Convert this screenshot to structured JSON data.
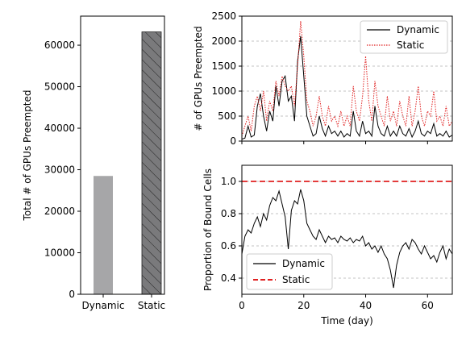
{
  "chart_data": [
    {
      "type": "bar",
      "categories": [
        "Dynamic",
        "Static"
      ],
      "values": [
        28500,
        63200
      ],
      "ylabel": "Total # of GPUs Preempted",
      "ylim": [
        0,
        67000
      ],
      "yticks": [
        0,
        10000,
        20000,
        30000,
        40000,
        50000,
        60000
      ],
      "colors": {
        "Dynamic": "#a6a6a8",
        "Static": "#7a7a7c"
      },
      "hatch": {
        "Static": "diagonal"
      },
      "grid": false
    },
    {
      "type": "line",
      "ylabel": "# of GPUs Preempted",
      "ylim": [
        0,
        2500
      ],
      "yticks": [
        0,
        500,
        1000,
        1500,
        2000,
        2500
      ],
      "xlim": [
        0,
        68
      ],
      "grid": "horizontal-dashed",
      "legend": "top-right",
      "series": [
        {
          "name": "Dynamic",
          "color": "#000000",
          "style": "solid",
          "points": [
            [
              0,
              40
            ],
            [
              1,
              60
            ],
            [
              2,
              300
            ],
            [
              3,
              80
            ],
            [
              4,
              120
            ],
            [
              5,
              700
            ],
            [
              6,
              950
            ],
            [
              7,
              500
            ],
            [
              8,
              200
            ],
            [
              9,
              600
            ],
            [
              10,
              400
            ],
            [
              11,
              1100
            ],
            [
              12,
              700
            ],
            [
              13,
              1200
            ],
            [
              14,
              1300
            ],
            [
              15,
              800
            ],
            [
              16,
              900
            ],
            [
              17,
              400
            ],
            [
              18,
              1600
            ],
            [
              19,
              2100
            ],
            [
              20,
              1300
            ],
            [
              21,
              500
            ],
            [
              22,
              300
            ],
            [
              23,
              100
            ],
            [
              24,
              150
            ],
            [
              25,
              500
            ],
            [
              26,
              250
            ],
            [
              27,
              100
            ],
            [
              28,
              300
            ],
            [
              29,
              150
            ],
            [
              30,
              200
            ],
            [
              31,
              100
            ],
            [
              32,
              200
            ],
            [
              33,
              80
            ],
            [
              34,
              150
            ],
            [
              35,
              100
            ],
            [
              36,
              600
            ],
            [
              37,
              200
            ],
            [
              38,
              100
            ],
            [
              39,
              400
            ],
            [
              40,
              150
            ],
            [
              41,
              200
            ],
            [
              42,
              100
            ],
            [
              43,
              700
            ],
            [
              44,
              300
            ],
            [
              45,
              150
            ],
            [
              46,
              100
            ],
            [
              47,
              300
            ],
            [
              48,
              100
            ],
            [
              49,
              200
            ],
            [
              50,
              100
            ],
            [
              51,
              300
            ],
            [
              52,
              150
            ],
            [
              53,
              100
            ],
            [
              54,
              250
            ],
            [
              55,
              80
            ],
            [
              56,
              200
            ],
            [
              57,
              400
            ],
            [
              58,
              150
            ],
            [
              59,
              100
            ],
            [
              60,
              200
            ],
            [
              61,
              150
            ],
            [
              62,
              350
            ],
            [
              63,
              100
            ],
            [
              64,
              150
            ],
            [
              65,
              100
            ],
            [
              66,
              200
            ],
            [
              67,
              80
            ],
            [
              68,
              120
            ]
          ]
        },
        {
          "name": "Static",
          "color": "#e02020",
          "style": "dotted",
          "points": [
            [
              0,
              100
            ],
            [
              1,
              300
            ],
            [
              2,
              500
            ],
            [
              3,
              200
            ],
            [
              4,
              700
            ],
            [
              5,
              900
            ],
            [
              6,
              600
            ],
            [
              7,
              1000
            ],
            [
              8,
              400
            ],
            [
              9,
              800
            ],
            [
              10,
              600
            ],
            [
              11,
              1200
            ],
            [
              12,
              900
            ],
            [
              13,
              1300
            ],
            [
              14,
              1100
            ],
            [
              15,
              1000
            ],
            [
              16,
              1100
            ],
            [
              17,
              700
            ],
            [
              18,
              1500
            ],
            [
              19,
              2400
            ],
            [
              20,
              1700
            ],
            [
              21,
              800
            ],
            [
              22,
              600
            ],
            [
              23,
              300
            ],
            [
              24,
              500
            ],
            [
              25,
              900
            ],
            [
              26,
              500
            ],
            [
              27,
              300
            ],
            [
              28,
              700
            ],
            [
              29,
              400
            ],
            [
              30,
              500
            ],
            [
              31,
              300
            ],
            [
              32,
              600
            ],
            [
              33,
              300
            ],
            [
              34,
              500
            ],
            [
              35,
              300
            ],
            [
              36,
              1100
            ],
            [
              37,
              600
            ],
            [
              38,
              400
            ],
            [
              39,
              900
            ],
            [
              40,
              1700
            ],
            [
              41,
              800
            ],
            [
              42,
              400
            ],
            [
              43,
              1200
            ],
            [
              44,
              700
            ],
            [
              45,
              500
            ],
            [
              46,
              300
            ],
            [
              47,
              900
            ],
            [
              48,
              400
            ],
            [
              49,
              600
            ],
            [
              50,
              300
            ],
            [
              51,
              800
            ],
            [
              52,
              500
            ],
            [
              53,
              300
            ],
            [
              54,
              900
            ],
            [
              55,
              300
            ],
            [
              56,
              600
            ],
            [
              57,
              1100
            ],
            [
              58,
              500
            ],
            [
              59,
              300
            ],
            [
              60,
              600
            ],
            [
              61,
              500
            ],
            [
              62,
              1000
            ],
            [
              63,
              400
            ],
            [
              64,
              500
            ],
            [
              65,
              300
            ],
            [
              66,
              700
            ],
            [
              67,
              300
            ],
            [
              68,
              400
            ]
          ]
        }
      ]
    },
    {
      "type": "line",
      "ylabel": "Proportion of Bound Cells",
      "xlabel": "Time (day)",
      "ylim": [
        0.3,
        1.1
      ],
      "yticks": [
        0.4,
        0.6,
        0.8,
        1.0
      ],
      "xticks": [
        0,
        20,
        40,
        60
      ],
      "xlim": [
        0,
        68
      ],
      "grid": "horizontal-dashed",
      "legend": "bottom-left",
      "series": [
        {
          "name": "Dynamic",
          "color": "#000000",
          "style": "solid",
          "points": [
            [
              0,
              0.55
            ],
            [
              1,
              0.66
            ],
            [
              2,
              0.7
            ],
            [
              3,
              0.68
            ],
            [
              4,
              0.74
            ],
            [
              5,
              0.78
            ],
            [
              6,
              0.72
            ],
            [
              7,
              0.8
            ],
            [
              8,
              0.76
            ],
            [
              9,
              0.85
            ],
            [
              10,
              0.9
            ],
            [
              11,
              0.88
            ],
            [
              12,
              0.94
            ],
            [
              13,
              0.86
            ],
            [
              14,
              0.78
            ],
            [
              15,
              0.58
            ],
            [
              16,
              0.82
            ],
            [
              17,
              0.88
            ],
            [
              18,
              0.86
            ],
            [
              19,
              0.95
            ],
            [
              20,
              0.88
            ],
            [
              21,
              0.74
            ],
            [
              22,
              0.7
            ],
            [
              23,
              0.66
            ],
            [
              24,
              0.64
            ],
            [
              25,
              0.7
            ],
            [
              26,
              0.66
            ],
            [
              27,
              0.62
            ],
            [
              28,
              0.66
            ],
            [
              29,
              0.64
            ],
            [
              30,
              0.65
            ],
            [
              31,
              0.62
            ],
            [
              32,
              0.66
            ],
            [
              33,
              0.64
            ],
            [
              34,
              0.63
            ],
            [
              35,
              0.65
            ],
            [
              36,
              0.62
            ],
            [
              37,
              0.64
            ],
            [
              38,
              0.63
            ],
            [
              39,
              0.66
            ],
            [
              40,
              0.6
            ],
            [
              41,
              0.62
            ],
            [
              42,
              0.58
            ],
            [
              43,
              0.6
            ],
            [
              44,
              0.56
            ],
            [
              45,
              0.6
            ],
            [
              46,
              0.55
            ],
            [
              47,
              0.52
            ],
            [
              48,
              0.45
            ],
            [
              49,
              0.34
            ],
            [
              50,
              0.48
            ],
            [
              51,
              0.56
            ],
            [
              52,
              0.6
            ],
            [
              53,
              0.62
            ],
            [
              54,
              0.58
            ],
            [
              55,
              0.64
            ],
            [
              56,
              0.62
            ],
            [
              57,
              0.58
            ],
            [
              58,
              0.55
            ],
            [
              59,
              0.6
            ],
            [
              60,
              0.56
            ],
            [
              61,
              0.52
            ],
            [
              62,
              0.54
            ],
            [
              63,
              0.5
            ],
            [
              64,
              0.56
            ],
            [
              65,
              0.6
            ],
            [
              66,
              0.52
            ],
            [
              67,
              0.58
            ],
            [
              68,
              0.55
            ]
          ]
        },
        {
          "name": "Static",
          "color": "#e02020",
          "style": "dashed",
          "points": [
            [
              0,
              1.0
            ],
            [
              68,
              1.0
            ]
          ]
        }
      ]
    }
  ]
}
